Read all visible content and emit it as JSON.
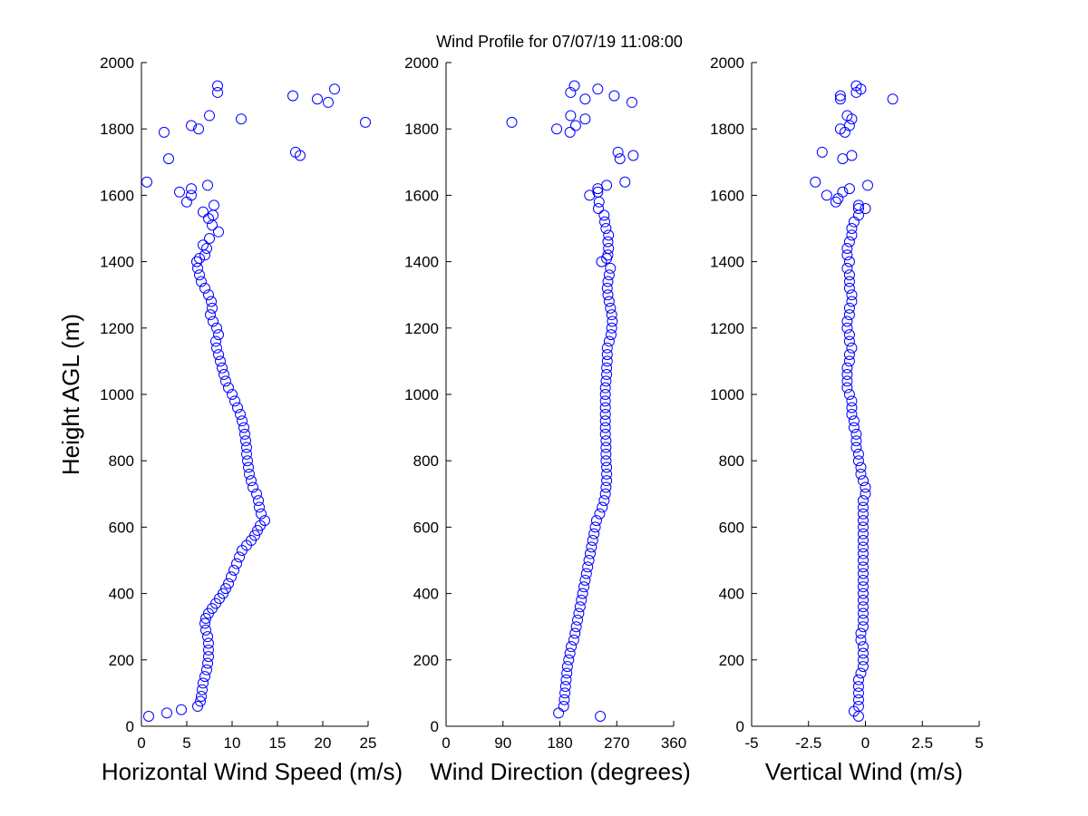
{
  "figure": {
    "title": "Wind Profile for  07/07/19 11:08:00",
    "y_axis_label": "Height AGL (m)"
  },
  "chart_data": [
    {
      "type": "scatter",
      "id": "speed",
      "xlabel": "Horizontal Wind Speed (m/s)",
      "ylabel": "Height AGL (m)",
      "xlim": [
        0,
        25
      ],
      "ylim": [
        0,
        2000
      ],
      "xticks": [
        0,
        5,
        10,
        15,
        20,
        25
      ],
      "xtick_labels": [
        "0",
        "5",
        "10",
        "15",
        "20",
        "25"
      ],
      "yticks": [
        0,
        200,
        400,
        600,
        800,
        1000,
        1200,
        1400,
        1600,
        1800,
        2000
      ],
      "ytick_labels": [
        "0",
        "200",
        "400",
        "600",
        "800",
        "1000",
        "1200",
        "1400",
        "1600",
        "1800",
        "2000"
      ],
      "marker": "circle",
      "color": "#0000ff",
      "points": [
        [
          0.8,
          30
        ],
        [
          2.8,
          40
        ],
        [
          4.4,
          50
        ],
        [
          6.2,
          60
        ],
        [
          6.5,
          75
        ],
        [
          6.6,
          90
        ],
        [
          6.7,
          110
        ],
        [
          6.8,
          130
        ],
        [
          7.0,
          150
        ],
        [
          7.2,
          170
        ],
        [
          7.3,
          190
        ],
        [
          7.4,
          210
        ],
        [
          7.4,
          230
        ],
        [
          7.4,
          250
        ],
        [
          7.3,
          270
        ],
        [
          7.1,
          290
        ],
        [
          7.0,
          310
        ],
        [
          7.1,
          325
        ],
        [
          7.4,
          340
        ],
        [
          7.8,
          355
        ],
        [
          8.2,
          370
        ],
        [
          8.6,
          385
        ],
        [
          9.0,
          400
        ],
        [
          9.3,
          415
        ],
        [
          9.6,
          430
        ],
        [
          9.9,
          450
        ],
        [
          10.2,
          470
        ],
        [
          10.5,
          490
        ],
        [
          10.8,
          510
        ],
        [
          11.1,
          530
        ],
        [
          11.6,
          545
        ],
        [
          12.1,
          560
        ],
        [
          12.5,
          575
        ],
        [
          12.8,
          590
        ],
        [
          13.1,
          605
        ],
        [
          13.6,
          620
        ],
        [
          13.2,
          640
        ],
        [
          13.0,
          660
        ],
        [
          12.9,
          680
        ],
        [
          12.7,
          700
        ],
        [
          12.3,
          720
        ],
        [
          12.1,
          740
        ],
        [
          11.9,
          760
        ],
        [
          11.8,
          780
        ],
        [
          11.7,
          800
        ],
        [
          11.6,
          820
        ],
        [
          11.6,
          840
        ],
        [
          11.5,
          860
        ],
        [
          11.4,
          880
        ],
        [
          11.3,
          900
        ],
        [
          11.1,
          920
        ],
        [
          10.9,
          940
        ],
        [
          10.6,
          960
        ],
        [
          10.3,
          980
        ],
        [
          10.0,
          1000
        ],
        [
          9.6,
          1020
        ],
        [
          9.3,
          1040
        ],
        [
          9.1,
          1060
        ],
        [
          8.9,
          1080
        ],
        [
          8.7,
          1100
        ],
        [
          8.5,
          1120
        ],
        [
          8.3,
          1140
        ],
        [
          8.2,
          1160
        ],
        [
          8.5,
          1180
        ],
        [
          8.3,
          1200
        ],
        [
          7.9,
          1220
        ],
        [
          7.6,
          1240
        ],
        [
          7.8,
          1260
        ],
        [
          7.7,
          1280
        ],
        [
          7.4,
          1300
        ],
        [
          7.0,
          1320
        ],
        [
          6.6,
          1340
        ],
        [
          6.4,
          1360
        ],
        [
          6.2,
          1380
        ],
        [
          6.1,
          1400
        ],
        [
          6.4,
          1410
        ],
        [
          7.0,
          1420
        ],
        [
          7.2,
          1440
        ],
        [
          6.8,
          1450
        ],
        [
          7.5,
          1470
        ],
        [
          8.5,
          1490
        ],
        [
          7.8,
          1510
        ],
        [
          7.4,
          1530
        ],
        [
          7.9,
          1540
        ],
        [
          6.8,
          1550
        ],
        [
          8.0,
          1570
        ],
        [
          5.0,
          1580
        ],
        [
          5.5,
          1600
        ],
        [
          4.2,
          1610
        ],
        [
          5.5,
          1620
        ],
        [
          7.3,
          1630
        ],
        [
          0.6,
          1640
        ],
        [
          3.0,
          1710
        ],
        [
          17.5,
          1720
        ],
        [
          17.0,
          1730
        ],
        [
          2.5,
          1790
        ],
        [
          6.3,
          1800
        ],
        [
          5.5,
          1810
        ],
        [
          24.7,
          1820
        ],
        [
          11.0,
          1830
        ],
        [
          7.5,
          1840
        ],
        [
          20.6,
          1880
        ],
        [
          19.4,
          1890
        ],
        [
          16.7,
          1900
        ],
        [
          8.4,
          1910
        ],
        [
          21.3,
          1920
        ],
        [
          8.4,
          1930
        ]
      ]
    },
    {
      "type": "scatter",
      "id": "direction",
      "xlabel": "Wind Direction (degrees)",
      "ylabel": "",
      "xlim": [
        0,
        360
      ],
      "ylim": [
        0,
        2000
      ],
      "xticks": [
        0,
        90,
        180,
        270,
        360
      ],
      "xtick_labels": [
        "0",
        "90",
        "180",
        "270",
        "360"
      ],
      "yticks": [
        0,
        200,
        400,
        600,
        800,
        1000,
        1200,
        1400,
        1600,
        1800,
        2000
      ],
      "ytick_labels": [
        "0",
        "200",
        "400",
        "600",
        "800",
        "1000",
        "1200",
        "1400",
        "1600",
        "1800",
        "2000"
      ],
      "marker": "circle",
      "color": "#0000ff",
      "points": [
        [
          244,
          30
        ],
        [
          178,
          40
        ],
        [
          186,
          60
        ],
        [
          187,
          80
        ],
        [
          188,
          100
        ],
        [
          189,
          120
        ],
        [
          190,
          140
        ],
        [
          191,
          160
        ],
        [
          192,
          180
        ],
        [
          194,
          200
        ],
        [
          196,
          220
        ],
        [
          198,
          240
        ],
        [
          202,
          260
        ],
        [
          204,
          280
        ],
        [
          206,
          300
        ],
        [
          208,
          320
        ],
        [
          210,
          340
        ],
        [
          212,
          360
        ],
        [
          214,
          380
        ],
        [
          216,
          400
        ],
        [
          218,
          420
        ],
        [
          220,
          440
        ],
        [
          222,
          460
        ],
        [
          224,
          480
        ],
        [
          226,
          500
        ],
        [
          228,
          520
        ],
        [
          230,
          540
        ],
        [
          232,
          560
        ],
        [
          234,
          580
        ],
        [
          236,
          600
        ],
        [
          238,
          620
        ],
        [
          243,
          640
        ],
        [
          247,
          660
        ],
        [
          250,
          680
        ],
        [
          252,
          700
        ],
        [
          253,
          720
        ],
        [
          254,
          740
        ],
        [
          254,
          760
        ],
        [
          254,
          780
        ],
        [
          253,
          800
        ],
        [
          253,
          820
        ],
        [
          253,
          840
        ],
        [
          253,
          860
        ],
        [
          252,
          880
        ],
        [
          252,
          900
        ],
        [
          252,
          920
        ],
        [
          252,
          940
        ],
        [
          252,
          960
        ],
        [
          252,
          980
        ],
        [
          252,
          1000
        ],
        [
          252,
          1020
        ],
        [
          253,
          1040
        ],
        [
          254,
          1060
        ],
        [
          254,
          1080
        ],
        [
          255,
          1100
        ],
        [
          255,
          1120
        ],
        [
          255,
          1140
        ],
        [
          258,
          1160
        ],
        [
          261,
          1180
        ],
        [
          262,
          1200
        ],
        [
          263,
          1220
        ],
        [
          262,
          1240
        ],
        [
          260,
          1260
        ],
        [
          258,
          1280
        ],
        [
          256,
          1300
        ],
        [
          255,
          1320
        ],
        [
          256,
          1340
        ],
        [
          258,
          1360
        ],
        [
          260,
          1380
        ],
        [
          246,
          1400
        ],
        [
          254,
          1410
        ],
        [
          256,
          1420
        ],
        [
          257,
          1440
        ],
        [
          256,
          1460
        ],
        [
          257,
          1480
        ],
        [
          253,
          1500
        ],
        [
          251,
          1520
        ],
        [
          250,
          1540
        ],
        [
          241,
          1560
        ],
        [
          242,
          1580
        ],
        [
          227,
          1600
        ],
        [
          240,
          1610
        ],
        [
          240,
          1620
        ],
        [
          254,
          1630
        ],
        [
          283,
          1640
        ],
        [
          275,
          1710
        ],
        [
          296,
          1720
        ],
        [
          272,
          1730
        ],
        [
          196,
          1790
        ],
        [
          175,
          1800
        ],
        [
          205,
          1810
        ],
        [
          104,
          1820
        ],
        [
          220,
          1830
        ],
        [
          197,
          1840
        ],
        [
          294,
          1880
        ],
        [
          220,
          1890
        ],
        [
          266,
          1900
        ],
        [
          197,
          1910
        ],
        [
          240,
          1920
        ],
        [
          203,
          1930
        ]
      ]
    },
    {
      "type": "scatter",
      "id": "vertical",
      "xlabel": "Vertical Wind (m/s)",
      "ylabel": "",
      "xlim": [
        -5,
        5
      ],
      "ylim": [
        0,
        2000
      ],
      "xticks": [
        -5,
        -2.5,
        0,
        2.5,
        5
      ],
      "xtick_labels": [
        "-5",
        "-2.5",
        "0",
        "2.5",
        "5"
      ],
      "yticks": [
        0,
        200,
        400,
        600,
        800,
        1000,
        1200,
        1400,
        1600,
        1800,
        2000
      ],
      "ytick_labels": [
        "0",
        "200",
        "400",
        "600",
        "800",
        "1000",
        "1200",
        "1400",
        "1600",
        "1800",
        "2000"
      ],
      "marker": "circle",
      "color": "#0000ff",
      "points": [
        [
          -0.3,
          30
        ],
        [
          -0.5,
          45
        ],
        [
          -0.3,
          60
        ],
        [
          -0.3,
          80
        ],
        [
          -0.3,
          100
        ],
        [
          -0.3,
          120
        ],
        [
          -0.3,
          140
        ],
        [
          -0.2,
          160
        ],
        [
          -0.1,
          180
        ],
        [
          -0.1,
          200
        ],
        [
          -0.1,
          220
        ],
        [
          -0.1,
          240
        ],
        [
          -0.2,
          260
        ],
        [
          -0.2,
          280
        ],
        [
          -0.1,
          300
        ],
        [
          -0.1,
          320
        ],
        [
          -0.1,
          340
        ],
        [
          -0.1,
          360
        ],
        [
          -0.1,
          380
        ],
        [
          -0.1,
          400
        ],
        [
          -0.1,
          420
        ],
        [
          -0.1,
          440
        ],
        [
          -0.1,
          460
        ],
        [
          -0.1,
          480
        ],
        [
          -0.1,
          500
        ],
        [
          -0.1,
          520
        ],
        [
          -0.1,
          540
        ],
        [
          -0.1,
          560
        ],
        [
          -0.1,
          580
        ],
        [
          -0.1,
          600
        ],
        [
          -0.1,
          620
        ],
        [
          -0.1,
          640
        ],
        [
          -0.1,
          660
        ],
        [
          -0.1,
          680
        ],
        [
          0.0,
          700
        ],
        [
          0.0,
          720
        ],
        [
          -0.1,
          740
        ],
        [
          -0.2,
          760
        ],
        [
          -0.2,
          780
        ],
        [
          -0.3,
          800
        ],
        [
          -0.3,
          820
        ],
        [
          -0.4,
          840
        ],
        [
          -0.4,
          860
        ],
        [
          -0.4,
          880
        ],
        [
          -0.5,
          900
        ],
        [
          -0.5,
          920
        ],
        [
          -0.6,
          940
        ],
        [
          -0.6,
          960
        ],
        [
          -0.6,
          980
        ],
        [
          -0.7,
          1000
        ],
        [
          -0.8,
          1020
        ],
        [
          -0.8,
          1040
        ],
        [
          -0.8,
          1060
        ],
        [
          -0.8,
          1080
        ],
        [
          -0.7,
          1100
        ],
        [
          -0.7,
          1120
        ],
        [
          -0.6,
          1140
        ],
        [
          -0.7,
          1160
        ],
        [
          -0.7,
          1180
        ],
        [
          -0.8,
          1200
        ],
        [
          -0.8,
          1220
        ],
        [
          -0.7,
          1240
        ],
        [
          -0.7,
          1260
        ],
        [
          -0.6,
          1280
        ],
        [
          -0.6,
          1300
        ],
        [
          -0.7,
          1320
        ],
        [
          -0.7,
          1340
        ],
        [
          -0.7,
          1360
        ],
        [
          -0.8,
          1380
        ],
        [
          -0.7,
          1400
        ],
        [
          -0.8,
          1420
        ],
        [
          -0.8,
          1440
        ],
        [
          -0.7,
          1460
        ],
        [
          -0.6,
          1480
        ],
        [
          -0.6,
          1500
        ],
        [
          -0.5,
          1520
        ],
        [
          -0.3,
          1540
        ],
        [
          -0.3,
          1560
        ],
        [
          -0.3,
          1570
        ],
        [
          0.0,
          1560
        ],
        [
          -1.3,
          1580
        ],
        [
          -1.2,
          1590
        ],
        [
          -1.0,
          1610
        ],
        [
          -0.7,
          1620
        ],
        [
          -1.7,
          1600
        ],
        [
          0.1,
          1630
        ],
        [
          -2.2,
          1640
        ],
        [
          -1.9,
          1730
        ],
        [
          -1.0,
          1710
        ],
        [
          -0.6,
          1720
        ],
        [
          -1.1,
          1800
        ],
        [
          -0.9,
          1790
        ],
        [
          -0.7,
          1810
        ],
        [
          -0.6,
          1830
        ],
        [
          -0.8,
          1840
        ],
        [
          -1.1,
          1890
        ],
        [
          -1.1,
          1900
        ],
        [
          1.2,
          1890
        ],
        [
          -0.4,
          1910
        ],
        [
          -0.2,
          1920
        ],
        [
          -0.4,
          1930
        ]
      ]
    }
  ]
}
